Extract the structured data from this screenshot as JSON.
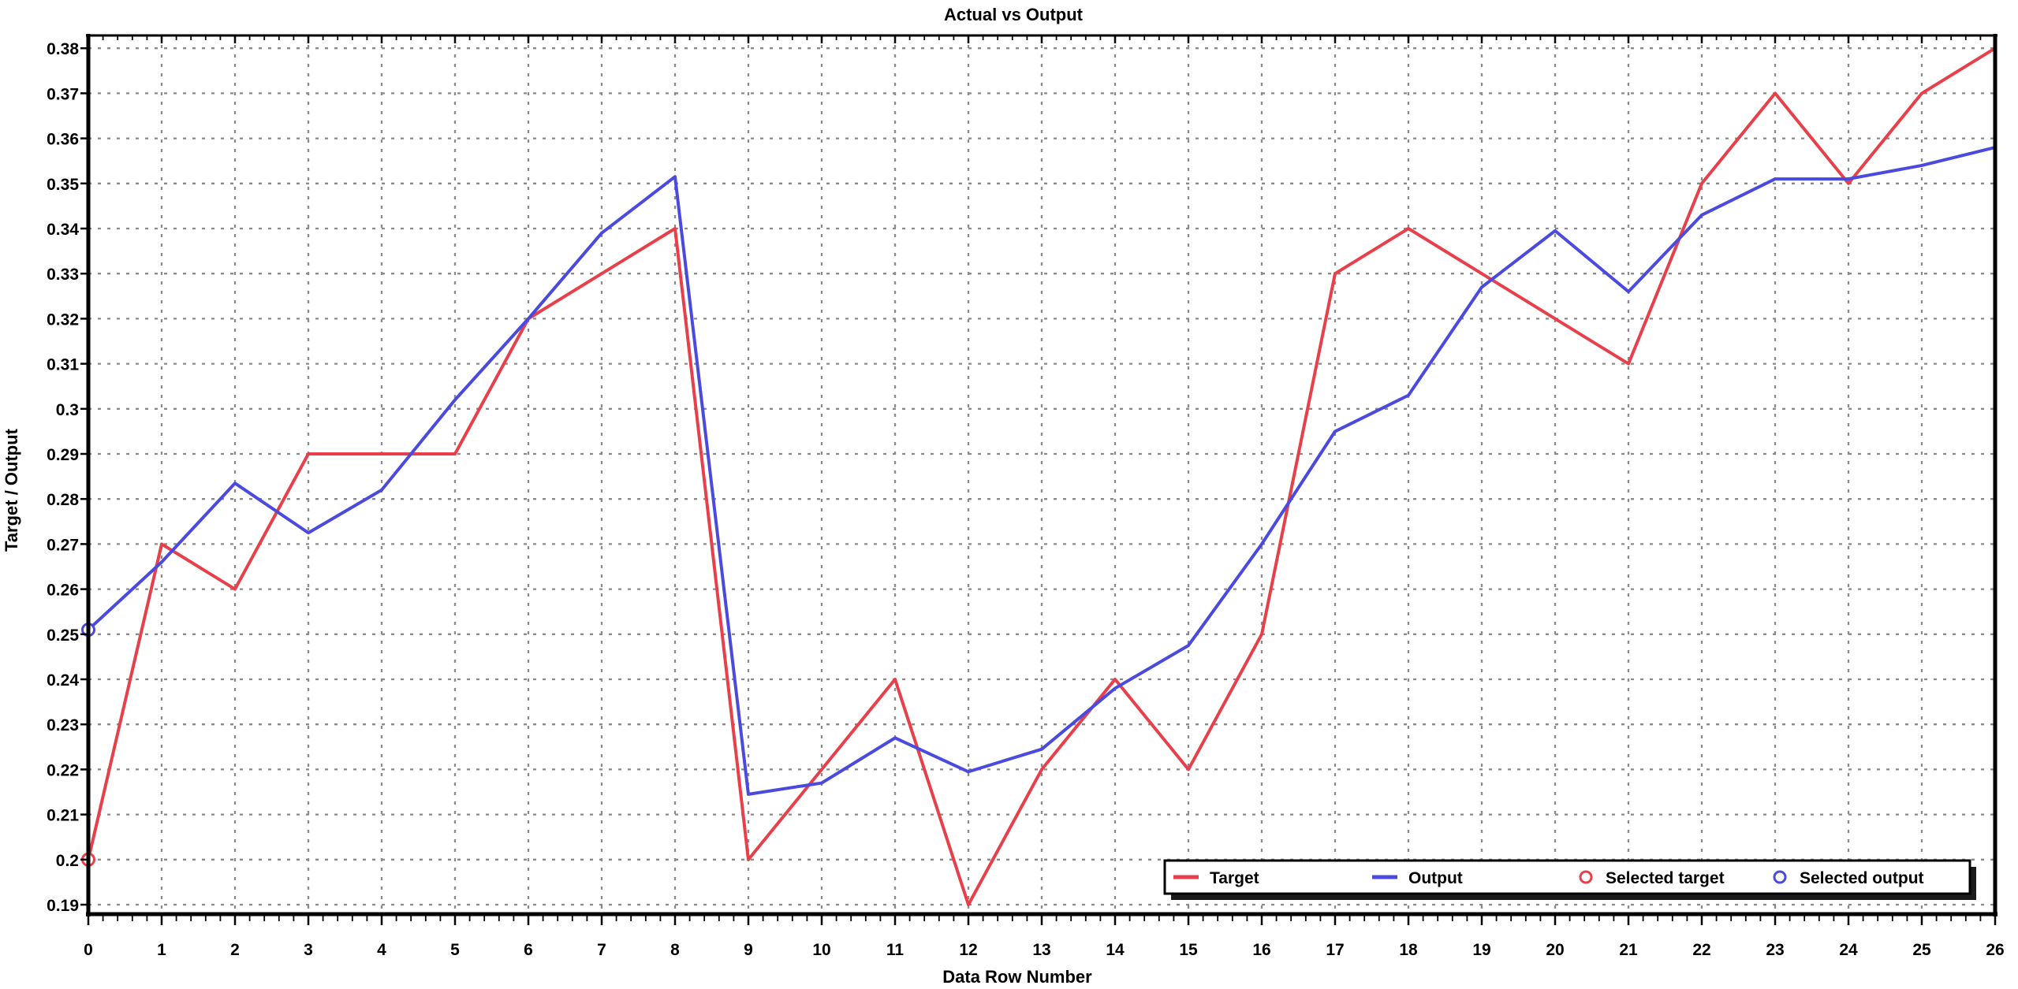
{
  "chart_data": {
    "type": "line",
    "title": "Actual vs Output",
    "xlabel": "Data Row Number",
    "ylabel": "Target / Output",
    "xlim": [
      0,
      26
    ],
    "ylim": [
      0.19,
      0.38
    ],
    "grid": "gray dashed gridlines at every x integer and every 0.01 y step",
    "legend_position": "bottom-right inside plot, horizontal, white box with black border and drop shadow",
    "x": [
      0,
      1,
      2,
      3,
      4,
      5,
      6,
      7,
      8,
      9,
      10,
      11,
      12,
      13,
      14,
      15,
      16,
      17,
      18,
      19,
      20,
      21,
      22,
      23,
      24,
      25,
      26
    ],
    "x_tick_labels": [
      "0",
      "1",
      "2",
      "3",
      "4",
      "5",
      "6",
      "7",
      "8",
      "9",
      "10",
      "11",
      "12",
      "13",
      "14",
      "15",
      "16",
      "17",
      "18",
      "19",
      "20",
      "21",
      "22",
      "23",
      "24",
      "25",
      "26"
    ],
    "y_tick_labels": [
      "0.19",
      "0.2",
      "0.21",
      "0.22",
      "0.23",
      "0.24",
      "0.25",
      "0.26",
      "0.27",
      "0.28",
      "0.29",
      "0.3",
      "0.31",
      "0.32",
      "0.33",
      "0.34",
      "0.35",
      "0.36",
      "0.37",
      "0.38"
    ],
    "series": [
      {
        "name": "Target",
        "color": "#e8404b",
        "values": [
          0.2,
          0.27,
          0.26,
          0.29,
          0.29,
          0.29,
          0.32,
          0.33,
          0.34,
          0.2,
          0.22,
          0.24,
          0.19,
          0.22,
          0.24,
          0.22,
          0.25,
          0.33,
          0.34,
          0.33,
          0.32,
          0.31,
          0.35,
          0.37,
          0.35,
          0.37,
          0.38
        ]
      },
      {
        "name": "Output",
        "color": "#4a4ade",
        "values": [
          0.251,
          0.266,
          0.2835,
          0.2725,
          0.282,
          0.302,
          0.32,
          0.339,
          0.3515,
          0.2145,
          0.217,
          0.227,
          0.2195,
          0.2245,
          0.238,
          0.2475,
          0.27,
          0.295,
          0.303,
          0.327,
          0.3395,
          0.326,
          0.343,
          0.351,
          0.351,
          0.354,
          0.358
        ]
      }
    ],
    "selected_points": [
      {
        "series": "Target",
        "x": 0,
        "y": 0.2,
        "marker": "open-circle",
        "color": "#e8404b"
      },
      {
        "series": "Output",
        "x": 0,
        "y": 0.251,
        "marker": "open-circle",
        "color": "#4a4ade"
      }
    ],
    "legend": [
      "Target",
      "Output",
      "Selected target",
      "Selected output"
    ],
    "colors": {
      "target": "#e8404b",
      "output": "#4a4ade",
      "gridline": "#8a8a8a",
      "frame": "#000000",
      "background": "#ffffff",
      "legend_shadow": "#1a1a1a"
    }
  }
}
